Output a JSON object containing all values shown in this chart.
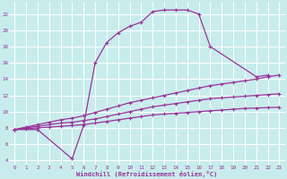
{
  "xlabel": "Windchill (Refroidissement éolien,°C)",
  "bg_color": "#c8ecec",
  "grid_color": "#ffffff",
  "line_color": "#993399",
  "xlim": [
    -0.5,
    23.5
  ],
  "ylim": [
    3.5,
    23.5
  ],
  "xticks": [
    0,
    1,
    2,
    3,
    4,
    5,
    6,
    7,
    8,
    9,
    10,
    11,
    12,
    13,
    14,
    15,
    16,
    17,
    18,
    19,
    20,
    21,
    22,
    23
  ],
  "yticks": [
    4,
    6,
    8,
    10,
    12,
    14,
    16,
    18,
    20,
    22
  ],
  "main_curve": {
    "x": [
      0,
      2,
      5,
      6,
      7,
      8,
      9,
      10,
      11,
      12,
      13,
      14,
      15,
      16,
      17,
      21,
      22
    ],
    "y": [
      7.8,
      7.8,
      4.2,
      8.3,
      16.0,
      18.5,
      19.7,
      20.5,
      21.0,
      22.3,
      22.5,
      22.5,
      22.5,
      22.0,
      18.0,
      14.3,
      14.5
    ]
  },
  "fan_lines": [
    {
      "x": [
        0,
        1,
        2,
        3,
        4,
        5,
        6,
        7,
        8,
        9,
        10,
        11,
        12,
        13,
        14,
        15,
        16,
        17,
        18,
        19,
        20,
        21,
        22,
        23
      ],
      "y": [
        7.8,
        7.9,
        8.0,
        8.1,
        8.2,
        8.3,
        8.4,
        8.6,
        8.8,
        9.0,
        9.2,
        9.4,
        9.6,
        9.7,
        9.8,
        9.9,
        10.0,
        10.1,
        10.2,
        10.3,
        10.4,
        10.45,
        10.5,
        10.55
      ]
    },
    {
      "x": [
        0,
        1,
        2,
        3,
        4,
        5,
        6,
        7,
        8,
        9,
        10,
        11,
        12,
        13,
        14,
        15,
        16,
        17,
        18,
        19,
        20,
        21,
        22,
        23
      ],
      "y": [
        7.8,
        8.0,
        8.2,
        8.4,
        8.6,
        8.7,
        8.9,
        9.1,
        9.4,
        9.7,
        10.0,
        10.3,
        10.6,
        10.8,
        11.0,
        11.2,
        11.4,
        11.6,
        11.7,
        11.8,
        11.9,
        12.0,
        12.1,
        12.2
      ]
    },
    {
      "x": [
        0,
        1,
        2,
        3,
        4,
        5,
        6,
        7,
        8,
        9,
        10,
        11,
        12,
        13,
        14,
        15,
        16,
        17,
        18,
        19,
        20,
        21,
        22,
        23
      ],
      "y": [
        7.8,
        8.1,
        8.4,
        8.7,
        9.0,
        9.2,
        9.5,
        9.9,
        10.3,
        10.7,
        11.1,
        11.4,
        11.7,
        12.0,
        12.3,
        12.6,
        12.9,
        13.2,
        13.4,
        13.6,
        13.8,
        14.0,
        14.3,
        14.5
      ]
    }
  ]
}
